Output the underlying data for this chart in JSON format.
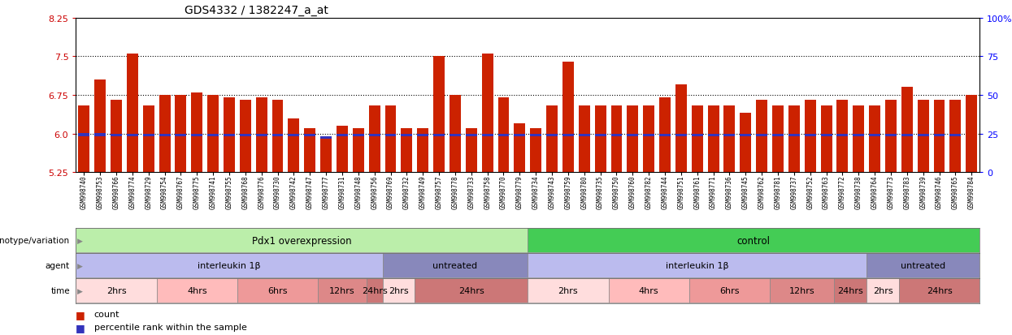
{
  "title": "GDS4332 / 1382247_a_at",
  "samples": [
    "GSM998740",
    "GSM998753",
    "GSM998766",
    "GSM998774",
    "GSM998729",
    "GSM998754",
    "GSM998767",
    "GSM998775",
    "GSM998741",
    "GSM998755",
    "GSM998768",
    "GSM998776",
    "GSM998730",
    "GSM998742",
    "GSM998747",
    "GSM998777",
    "GSM998731",
    "GSM998748",
    "GSM998756",
    "GSM998769",
    "GSM998732",
    "GSM998749",
    "GSM998757",
    "GSM998778",
    "GSM998733",
    "GSM998758",
    "GSM998770",
    "GSM998779",
    "GSM998734",
    "GSM998743",
    "GSM998759",
    "GSM998780",
    "GSM998735",
    "GSM998750",
    "GSM998760",
    "GSM998782",
    "GSM998744",
    "GSM998751",
    "GSM998761",
    "GSM998771",
    "GSM998736",
    "GSM998745",
    "GSM998762",
    "GSM998781",
    "GSM998737",
    "GSM998752",
    "GSM998763",
    "GSM998772",
    "GSM998738",
    "GSM998764",
    "GSM998773",
    "GSM998783",
    "GSM998739",
    "GSM998746",
    "GSM998765",
    "GSM998784"
  ],
  "bar_values": [
    6.55,
    7.05,
    6.65,
    7.55,
    6.55,
    6.75,
    6.75,
    6.8,
    6.75,
    6.7,
    6.65,
    6.7,
    6.65,
    6.3,
    6.1,
    5.9,
    6.15,
    6.1,
    6.55,
    6.55,
    6.1,
    6.1,
    7.5,
    6.75,
    6.1,
    7.55,
    6.7,
    6.2,
    6.1,
    6.55,
    7.4,
    6.55,
    6.55,
    6.55,
    6.55,
    6.55,
    6.7,
    6.95,
    6.55,
    6.55,
    6.55,
    6.4,
    6.65,
    6.55,
    6.55,
    6.65,
    6.55,
    6.65,
    6.55,
    6.55,
    6.65,
    6.9,
    6.65,
    6.65,
    6.65,
    6.75
  ],
  "percentile_values": [
    5.98,
    5.98,
    5.97,
    5.97,
    5.97,
    5.97,
    5.97,
    5.97,
    5.97,
    5.97,
    5.97,
    5.97,
    5.97,
    5.97,
    5.97,
    5.92,
    5.97,
    5.97,
    5.97,
    5.97,
    5.97,
    5.97,
    5.97,
    5.97,
    5.97,
    5.97,
    5.97,
    5.97,
    5.97,
    5.97,
    5.97,
    5.97,
    5.97,
    5.97,
    5.97,
    5.97,
    5.97,
    5.97,
    5.97,
    5.97,
    5.97,
    5.97,
    5.97,
    5.97,
    5.97,
    5.97,
    5.97,
    5.97,
    5.97,
    5.97,
    5.97,
    5.97,
    5.97,
    5.97,
    5.97,
    5.2
  ],
  "ylim_left": [
    5.25,
    8.25
  ],
  "ylim_right": [
    0,
    100
  ],
  "yticks_left": [
    5.25,
    6.0,
    6.75,
    7.5,
    8.25
  ],
  "yticks_right": [
    0,
    25,
    50,
    75,
    100
  ],
  "hlines": [
    6.0,
    6.75,
    7.5
  ],
  "bar_color": "#cc2200",
  "percentile_color": "#3333bb",
  "bar_bottom": 5.25,
  "genotype_bands": [
    {
      "label": "Pdx1 overexpression",
      "start": 0,
      "end": 28,
      "color": "#bbeeaa"
    },
    {
      "label": "control",
      "start": 28,
      "end": 56,
      "color": "#44cc55"
    }
  ],
  "agent_bands": [
    {
      "label": "interleukin 1β",
      "start": 0,
      "end": 19,
      "color": "#bbbbee"
    },
    {
      "label": "untreated",
      "start": 19,
      "end": 28,
      "color": "#8888bb"
    },
    {
      "label": "interleukin 1β",
      "start": 28,
      "end": 49,
      "color": "#bbbbee"
    },
    {
      "label": "untreated",
      "start": 49,
      "end": 56,
      "color": "#8888bb"
    }
  ],
  "time_bands": [
    {
      "label": "2hrs",
      "start": 0,
      "end": 5,
      "color": "#ffdddd"
    },
    {
      "label": "4hrs",
      "start": 5,
      "end": 10,
      "color": "#ffbbbb"
    },
    {
      "label": "6hrs",
      "start": 10,
      "end": 15,
      "color": "#ee9999"
    },
    {
      "label": "12hrs",
      "start": 15,
      "end": 18,
      "color": "#dd8888"
    },
    {
      "label": "24hrs",
      "start": 18,
      "end": 19,
      "color": "#cc7777"
    },
    {
      "label": "2hrs",
      "start": 19,
      "end": 21,
      "color": "#ffdddd"
    },
    {
      "label": "24hrs",
      "start": 21,
      "end": 28,
      "color": "#cc7777"
    },
    {
      "label": "2hrs",
      "start": 28,
      "end": 33,
      "color": "#ffdddd"
    },
    {
      "label": "4hrs",
      "start": 33,
      "end": 38,
      "color": "#ffbbbb"
    },
    {
      "label": "6hrs",
      "start": 38,
      "end": 43,
      "color": "#ee9999"
    },
    {
      "label": "12hrs",
      "start": 43,
      "end": 47,
      "color": "#dd8888"
    },
    {
      "label": "24hrs",
      "start": 47,
      "end": 49,
      "color": "#cc7777"
    },
    {
      "label": "2hrs",
      "start": 49,
      "end": 51,
      "color": "#ffdddd"
    },
    {
      "label": "24hrs",
      "start": 51,
      "end": 56,
      "color": "#cc7777"
    }
  ],
  "background_color": "#ffffff"
}
